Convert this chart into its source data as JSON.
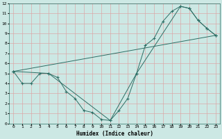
{
  "xlabel": "Humidex (Indice chaleur)",
  "bg_color": "#cce8e4",
  "grid_color": "#dba8a8",
  "line_color": "#2d6e65",
  "xlim": [
    -0.5,
    23.5
  ],
  "ylim": [
    0,
    12
  ],
  "xticks": [
    0,
    1,
    2,
    3,
    4,
    5,
    6,
    7,
    8,
    9,
    10,
    11,
    12,
    13,
    14,
    15,
    16,
    17,
    18,
    19,
    20,
    21,
    22,
    23
  ],
  "yticks": [
    0,
    1,
    2,
    3,
    4,
    5,
    6,
    7,
    8,
    9,
    10,
    11,
    12
  ],
  "line1_x": [
    0,
    1,
    2,
    3,
    4,
    5,
    6,
    7,
    8,
    9,
    10,
    11,
    12,
    13,
    14,
    15,
    16,
    17,
    18,
    19,
    20,
    21,
    22,
    23
  ],
  "line1_y": [
    5.2,
    4.0,
    4.0,
    5.0,
    5.0,
    4.6,
    3.2,
    2.5,
    1.3,
    1.1,
    0.4,
    0.3,
    1.3,
    2.5,
    5.0,
    7.8,
    8.5,
    10.2,
    11.2,
    11.7,
    11.5,
    10.3,
    9.5,
    8.8
  ],
  "line2_x": [
    0,
    4,
    11,
    14,
    19,
    20,
    21,
    22,
    23
  ],
  "line2_y": [
    5.2,
    5.0,
    0.3,
    5.0,
    11.7,
    11.5,
    10.3,
    9.5,
    8.8
  ],
  "line3_x": [
    0,
    23
  ],
  "line3_y": [
    5.2,
    8.8
  ]
}
